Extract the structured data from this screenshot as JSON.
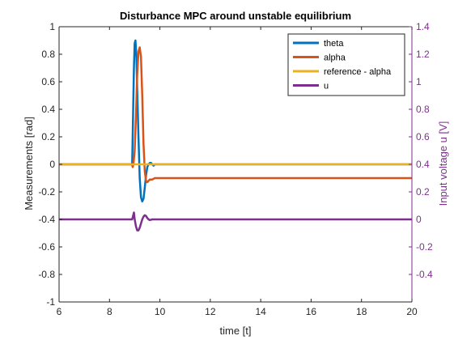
{
  "chart_data": {
    "type": "line",
    "title": "Disturbance MPC around unstable equilibrium",
    "xlabel": "time [t]",
    "ylabel_left": "Measurements [rad]",
    "ylabel_right": "Input voltage u [V]",
    "xlim": [
      6,
      20
    ],
    "ylim_left": [
      -1,
      1
    ],
    "ylim_right": [
      -0.6,
      1.4
    ],
    "xticks": [
      "6",
      "8",
      "10",
      "12",
      "14",
      "16",
      "18",
      "20"
    ],
    "yticks_left": [
      "-1",
      "-0.8",
      "-0.6",
      "-0.4",
      "-0.2",
      "0",
      "0.2",
      "0.4",
      "0.6",
      "0.8",
      "1"
    ],
    "yticks_right": [
      "-0.4",
      "-0.2",
      "0",
      "0.2",
      "0.4",
      "0.6",
      "0.8",
      "1",
      "1.2",
      "1.4"
    ],
    "grid": false,
    "legend_position": "top-right",
    "colors": {
      "theta": "#0072bd",
      "alpha": "#d95319",
      "reference": "#edb120",
      "u": "#7e2f8e",
      "axis_right": "#7e2f8e"
    },
    "series": [
      {
        "name": "theta",
        "axis": "left",
        "x": [
          6,
          8.9,
          8.93,
          8.97,
          9.0,
          9.03,
          9.07,
          9.1,
          9.15,
          9.2,
          9.25,
          9.3,
          9.35,
          9.4,
          9.45,
          9.5,
          9.55,
          9.6,
          9.65,
          9.7,
          9.75,
          9.8,
          9.9,
          10.0,
          10.5,
          20
        ],
        "y": [
          0,
          0,
          0.3,
          0.7,
          0.88,
          0.9,
          0.78,
          0.55,
          0.2,
          -0.1,
          -0.24,
          -0.27,
          -0.25,
          -0.17,
          -0.08,
          -0.02,
          0.0,
          0.01,
          0.01,
          0.0,
          -0.01,
          0.0,
          0.0,
          0.0,
          0.0,
          0.0
        ]
      },
      {
        "name": "alpha",
        "axis": "left",
        "x": [
          6,
          8.9,
          8.92,
          8.95,
          9.0,
          9.05,
          9.1,
          9.15,
          9.2,
          9.25,
          9.3,
          9.35,
          9.4,
          9.45,
          9.5,
          9.55,
          9.6,
          9.7,
          9.8,
          10.0,
          20
        ],
        "y": [
          0,
          0,
          -0.02,
          0.0,
          0.1,
          0.35,
          0.65,
          0.82,
          0.85,
          0.78,
          0.5,
          0.15,
          -0.05,
          -0.12,
          -0.13,
          -0.12,
          -0.11,
          -0.11,
          -0.1,
          -0.1,
          -0.1
        ]
      },
      {
        "name": "reference - alpha",
        "axis": "left",
        "x": [
          6,
          20
        ],
        "y": [
          0.0,
          0.0
        ]
      },
      {
        "name": "u",
        "axis": "right",
        "x": [
          6,
          8.9,
          8.93,
          8.97,
          9.0,
          9.05,
          9.1,
          9.15,
          9.2,
          9.25,
          9.3,
          9.35,
          9.4,
          9.45,
          9.5,
          9.55,
          9.6,
          9.7,
          9.8,
          9.9,
          10.0,
          20
        ],
        "y": [
          0,
          0,
          0.02,
          0.05,
          0.0,
          -0.05,
          -0.08,
          -0.08,
          -0.06,
          -0.03,
          0.0,
          0.02,
          0.03,
          0.025,
          0.01,
          0.0,
          -0.005,
          0.0,
          0.0,
          0.0,
          0.0,
          0.0
        ]
      }
    ]
  }
}
